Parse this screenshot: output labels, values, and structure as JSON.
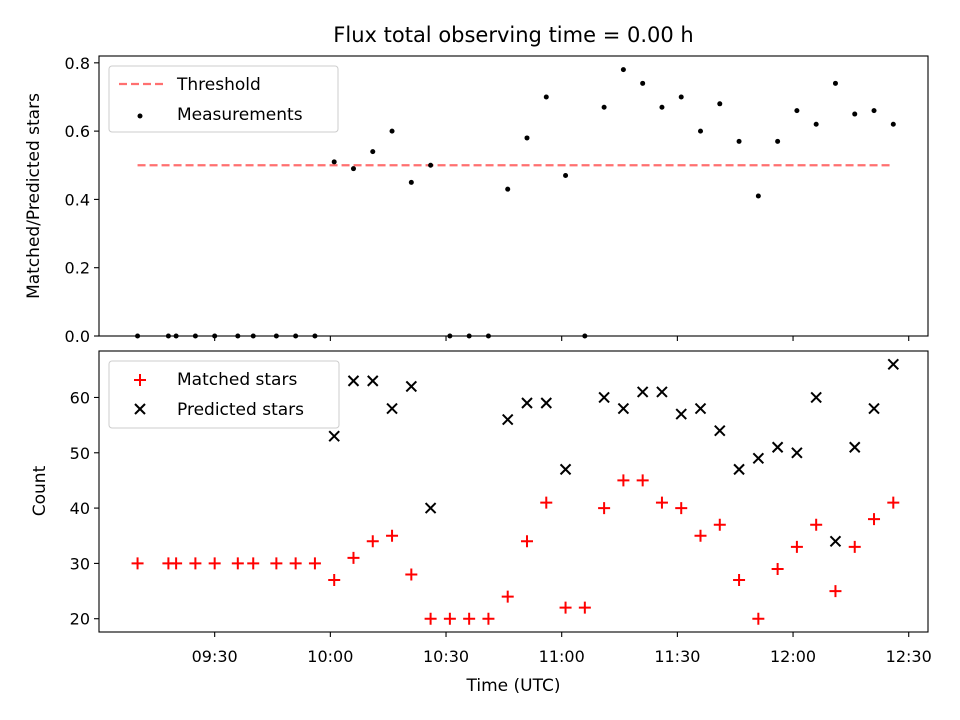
{
  "title": "Flux total observing time = 0.00 h",
  "colors": {
    "threshold": "#ff7070",
    "measurement": "#000000",
    "matched": "#ff0000",
    "predicted": "#000000"
  },
  "chart_data": [
    {
      "type": "scatter",
      "ylabel": "Matched/Predicted stars",
      "ylim": [
        0,
        0.82
      ],
      "yticks": [
        "0.0",
        "0.2",
        "0.4",
        "0.6",
        "0.8"
      ],
      "ytick_values": [
        0,
        0.2,
        0.4,
        0.6,
        0.8
      ],
      "grid": false,
      "legend_position": "upper-left",
      "series": [
        {
          "name": "Threshold",
          "style": "dashed-line",
          "x": [
            "09:10",
            "12:26"
          ],
          "y": [
            0.5,
            0.5
          ]
        },
        {
          "name": "Measurements",
          "style": "dot",
          "x": [
            "09:10",
            "09:18",
            "09:20",
            "09:25",
            "09:30",
            "09:36",
            "09:40",
            "09:46",
            "09:51",
            "09:56",
            "10:01",
            "10:06",
            "10:11",
            "10:16",
            "10:21",
            "10:26",
            "10:31",
            "10:36",
            "10:41",
            "10:46",
            "10:51",
            "10:56",
            "11:01",
            "11:06",
            "11:11",
            "11:16",
            "11:21",
            "11:26",
            "11:31",
            "11:36",
            "11:41",
            "11:46",
            "11:51",
            "11:56",
            "12:01",
            "12:06",
            "12:11",
            "12:16",
            "12:21",
            "12:26"
          ],
          "y": [
            0,
            0,
            0,
            0,
            0,
            0,
            0,
            0,
            0,
            0,
            0.51,
            0.49,
            0.54,
            0.6,
            0.45,
            0.5,
            0,
            0,
            0,
            0.43,
            0.58,
            0.7,
            0.47,
            0,
            0.67,
            0.78,
            0.74,
            0.67,
            0.7,
            0.6,
            0.68,
            0.57,
            0.41,
            0.57,
            0.66,
            0.62,
            0.74,
            0.65,
            0.66,
            0.62
          ]
        }
      ]
    },
    {
      "type": "scatter",
      "xlabel": "Time (UTC)",
      "ylabel": "Count",
      "ylim": [
        17.6,
        68.4
      ],
      "yticks": [
        "20",
        "30",
        "40",
        "50",
        "60"
      ],
      "ytick_values": [
        20,
        30,
        40,
        50,
        60
      ],
      "xticks": [
        "09:30",
        "10:00",
        "10:30",
        "11:00",
        "11:30",
        "12:00",
        "12:30"
      ],
      "grid": false,
      "legend_position": "upper-left",
      "series": [
        {
          "name": "Matched stars",
          "style": "plus",
          "x": [
            "09:10",
            "09:18",
            "09:20",
            "09:25",
            "09:30",
            "09:36",
            "09:40",
            "09:46",
            "09:51",
            "09:56",
            "10:01",
            "10:06",
            "10:11",
            "10:16",
            "10:21",
            "10:26",
            "10:31",
            "10:36",
            "10:41",
            "10:46",
            "10:51",
            "10:56",
            "11:01",
            "11:06",
            "11:11",
            "11:16",
            "11:21",
            "11:26",
            "11:31",
            "11:36",
            "11:41",
            "11:46",
            "11:51",
            "11:56",
            "12:01",
            "12:06",
            "12:11",
            "12:16",
            "12:21",
            "12:26"
          ],
          "y": [
            30,
            30,
            30,
            30,
            30,
            30,
            30,
            30,
            30,
            30,
            27,
            31,
            34,
            35,
            28,
            20,
            20,
            20,
            20,
            24,
            34,
            41,
            22,
            22,
            40,
            45,
            45,
            41,
            40,
            35,
            37,
            27,
            20,
            29,
            33,
            37,
            25,
            33,
            38,
            41
          ]
        },
        {
          "name": "Predicted stars",
          "style": "x",
          "x": [
            "10:01",
            "10:06",
            "10:11",
            "10:16",
            "10:21",
            "10:26",
            "10:46",
            "10:51",
            "10:56",
            "11:01",
            "11:11",
            "11:16",
            "11:21",
            "11:26",
            "11:31",
            "11:36",
            "11:41",
            "11:46",
            "11:51",
            "11:56",
            "12:01",
            "12:06",
            "12:11",
            "12:16",
            "12:21",
            "12:26"
          ],
          "y": [
            53,
            63,
            63,
            58,
            62,
            40,
            56,
            59,
            59,
            47,
            60,
            58,
            61,
            61,
            57,
            58,
            54,
            47,
            49,
            51,
            50,
            60,
            34,
            51,
            58,
            66
          ]
        }
      ]
    }
  ],
  "x_axis_range": [
    "09:00",
    "12:35"
  ]
}
